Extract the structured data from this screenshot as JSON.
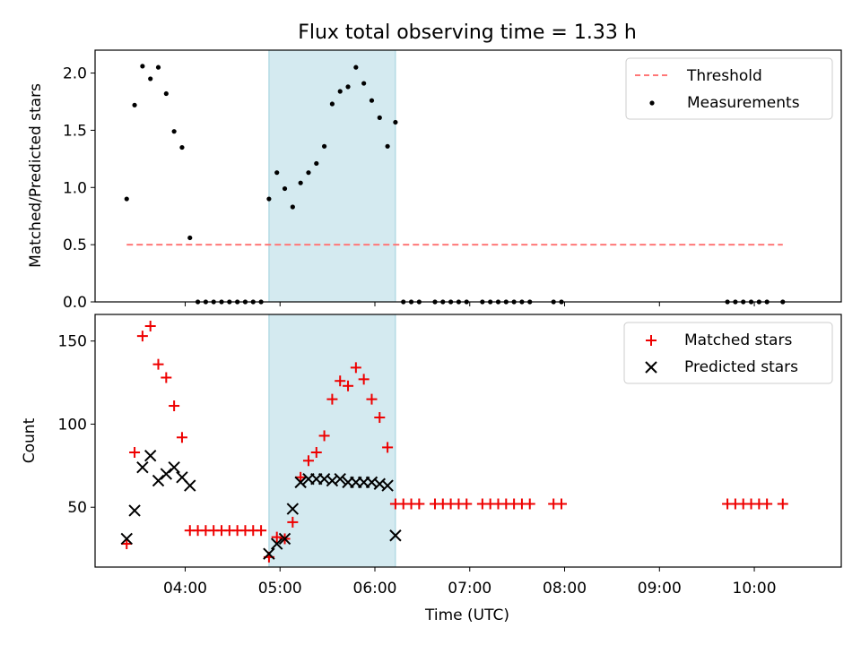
{
  "title": "Flux total observing time = 1.33 h",
  "colors": {
    "threshold": "#ff7777",
    "measurements": "#000000",
    "matched": "#ee0000",
    "predicted": "#000000",
    "span": "#d4eaf0"
  },
  "chart_data": [
    {
      "type": "scatter",
      "ylabel": "Matched/Predicted stars",
      "xlabel": "",
      "ylim": [
        0,
        2.2
      ],
      "yticks": [
        0.0,
        0.5,
        1.0,
        1.5,
        2.0
      ],
      "ytick_labels": [
        "0.0",
        "0.5",
        "1.0",
        "1.5",
        "2.0"
      ],
      "xlim": [
        "03:03",
        "10:55"
      ],
      "xticks": [
        "04:00",
        "05:00",
        "06:00",
        "07:00",
        "08:00",
        "09:00",
        "10:00"
      ],
      "highlight_span": [
        "04:53",
        "06:13"
      ],
      "legend": {
        "placement": "top-right",
        "entries": [
          "Threshold",
          "Measurements"
        ]
      },
      "series": [
        {
          "name": "Threshold",
          "kind": "dashed-line",
          "x": [
            "03:23",
            "10:18"
          ],
          "y": [
            0.5,
            0.5
          ]
        },
        {
          "name": "Measurements",
          "kind": "dots",
          "x": [
            "03:23",
            "03:28",
            "03:33",
            "03:38",
            "03:43",
            "03:48",
            "03:53",
            "03:58",
            "04:03",
            "04:08",
            "04:13",
            "04:18",
            "04:23",
            "04:28",
            "04:33",
            "04:38",
            "04:43",
            "04:48",
            "04:53",
            "04:58",
            "05:03",
            "05:08",
            "05:13",
            "05:18",
            "05:23",
            "05:28",
            "05:33",
            "05:38",
            "05:43",
            "05:48",
            "05:53",
            "05:58",
            "06:03",
            "06:08",
            "06:13",
            "06:18",
            "06:23",
            "06:28",
            "06:38",
            "06:43",
            "06:48",
            "06:53",
            "06:58",
            "07:08",
            "07:13",
            "07:18",
            "07:23",
            "07:28",
            "07:33",
            "07:38",
            "07:53",
            "07:58",
            "09:43",
            "09:48",
            "09:53",
            "09:58",
            "10:03",
            "10:08",
            "10:18"
          ],
          "y": [
            0.9,
            1.72,
            2.06,
            1.95,
            2.05,
            1.82,
            1.49,
            1.35,
            0.56,
            0,
            0,
            0,
            0,
            0,
            0,
            0,
            0,
            0,
            0.9,
            1.13,
            0.99,
            0.83,
            1.04,
            1.13,
            1.21,
            1.36,
            1.73,
            1.84,
            1.88,
            2.05,
            1.91,
            1.76,
            1.61,
            1.36,
            1.57,
            0,
            0,
            0,
            0,
            0,
            0,
            0,
            0,
            0,
            0,
            0,
            0,
            0,
            0,
            0,
            0,
            0,
            0,
            0,
            0,
            0,
            0,
            0,
            0
          ]
        }
      ]
    },
    {
      "type": "scatter",
      "ylabel": "Count",
      "xlabel": "Time (UTC)",
      "ylim": [
        14,
        166
      ],
      "yticks": [
        50,
        100,
        150
      ],
      "ytick_labels": [
        "50",
        "100",
        "150"
      ],
      "xlim": [
        "03:03",
        "10:55"
      ],
      "xticks": [
        "04:00",
        "05:00",
        "06:00",
        "07:00",
        "08:00",
        "09:00",
        "10:00"
      ],
      "highlight_span": [
        "04:53",
        "06:13"
      ],
      "legend": {
        "placement": "top-right",
        "entries": [
          "Matched stars",
          "Predicted stars"
        ]
      },
      "series": [
        {
          "name": "Matched stars",
          "marker": "plus",
          "x": [
            "03:23",
            "03:28",
            "03:33",
            "03:38",
            "03:43",
            "03:48",
            "03:53",
            "03:58",
            "04:03",
            "04:08",
            "04:13",
            "04:18",
            "04:23",
            "04:28",
            "04:33",
            "04:38",
            "04:43",
            "04:48",
            "04:53",
            "04:58",
            "05:03",
            "05:08",
            "05:13",
            "05:18",
            "05:23",
            "05:28",
            "05:33",
            "05:38",
            "05:43",
            "05:48",
            "05:53",
            "05:58",
            "06:03",
            "06:08",
            "06:13",
            "06:18",
            "06:23",
            "06:28",
            "06:38",
            "06:43",
            "06:48",
            "06:53",
            "06:58",
            "07:08",
            "07:13",
            "07:18",
            "07:23",
            "07:28",
            "07:33",
            "07:38",
            "07:53",
            "07:58",
            "09:43",
            "09:48",
            "09:53",
            "09:58",
            "10:03",
            "10:08",
            "10:18"
          ],
          "y": [
            28,
            83,
            153,
            159,
            136,
            128,
            111,
            92,
            36,
            36,
            36,
            36,
            36,
            36,
            36,
            36,
            36,
            36,
            20,
            32,
            31,
            41,
            68,
            78,
            83,
            93,
            115,
            126,
            123,
            134,
            127,
            115,
            104,
            86,
            52,
            52,
            52,
            52,
            52,
            52,
            52,
            52,
            52,
            52,
            52,
            52,
            52,
            52,
            52,
            52,
            52,
            52,
            52,
            52,
            52,
            52,
            52,
            52,
            52
          ]
        },
        {
          "name": "Predicted stars",
          "marker": "x",
          "x": [
            "03:23",
            "03:28",
            "03:33",
            "03:38",
            "03:43",
            "03:48",
            "03:53",
            "03:58",
            "04:03",
            "04:53",
            "04:58",
            "05:03",
            "05:08",
            "05:13",
            "05:18",
            "05:23",
            "05:28",
            "05:33",
            "05:38",
            "05:43",
            "05:48",
            "05:53",
            "05:58",
            "06:03",
            "06:08",
            "06:13"
          ],
          "y": [
            31,
            48,
            74,
            81,
            66,
            70,
            74,
            68,
            63,
            22,
            28,
            31,
            49,
            65,
            67,
            67,
            67,
            66,
            67,
            65,
            65,
            65,
            65,
            64,
            63,
            33
          ]
        }
      ]
    }
  ]
}
